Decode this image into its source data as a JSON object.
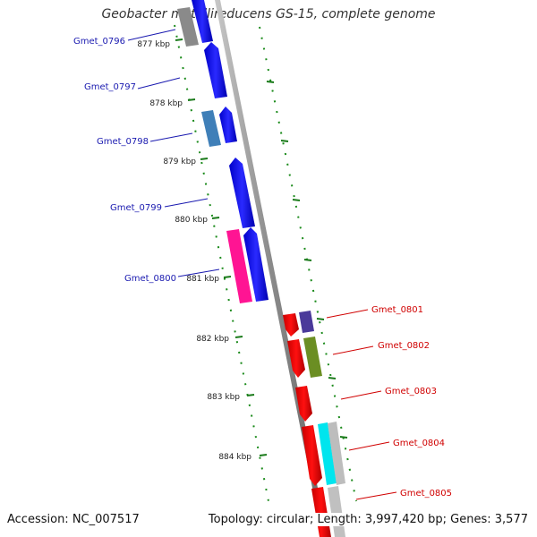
{
  "title": "Geobacter metallireducens GS-15, complete genome",
  "footer": {
    "accession": "Accession: NC_007517",
    "topology": "Topology: circular; Length: 3,997,420 bp; Genes: 3,577"
  },
  "ruler": {
    "unit": "kbp",
    "ticks": [
      877,
      878,
      879,
      880,
      881,
      882,
      883,
      884
    ]
  },
  "colors": {
    "backbone": "#8a8a8a",
    "tick": "#1a7a1a",
    "label_left": "#1a1ab0",
    "label_right": "#d00000"
  },
  "left_genes": [
    {
      "name": "Gmet_0796",
      "color": "#0000ee"
    },
    {
      "name": "Gmet_0797",
      "color": "#0000ee"
    },
    {
      "name": "Gmet_0798",
      "color": "#0000ee"
    },
    {
      "name": "Gmet_0799",
      "color": "#0000ee"
    },
    {
      "name": "Gmet_0800",
      "color": "#0000ee"
    }
  ],
  "right_genes": [
    {
      "name": "Gmet_0801",
      "color": "#ee0000"
    },
    {
      "name": "Gmet_0802",
      "color": "#ee0000"
    },
    {
      "name": "Gmet_0803",
      "color": "#ee0000"
    },
    {
      "name": "Gmet_0804",
      "color": "#ee0000"
    },
    {
      "name": "Gmet_0805",
      "color": "#ee0000"
    }
  ]
}
